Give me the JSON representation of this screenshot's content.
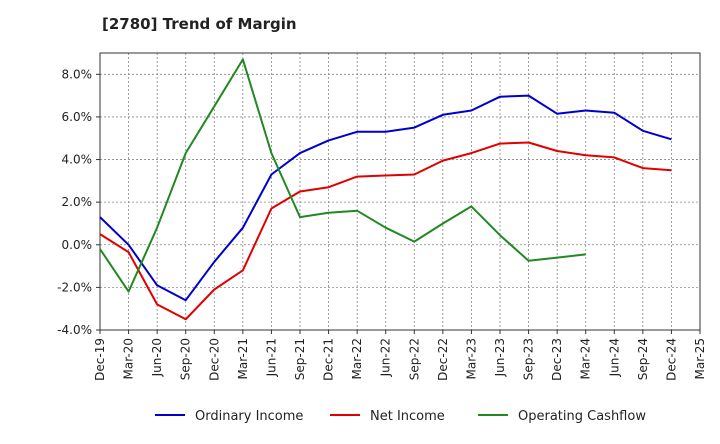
{
  "chart_data": {
    "type": "line",
    "title": "[2780]  Trend of Margin",
    "xlabel": "",
    "ylabel": "",
    "x": [
      "Dec-19",
      "Mar-20",
      "Jun-20",
      "Sep-20",
      "Dec-20",
      "Mar-21",
      "Jun-21",
      "Sep-21",
      "Dec-21",
      "Mar-22",
      "Jun-22",
      "Sep-22",
      "Dec-22",
      "Mar-23",
      "Jun-23",
      "Sep-23",
      "Dec-23",
      "Mar-24",
      "Jun-24",
      "Sep-24",
      "Dec-24",
      "Mar-25"
    ],
    "ylim": [
      -4.0,
      9.0
    ],
    "yticks": [
      -4.0,
      -2.0,
      0.0,
      2.0,
      4.0,
      6.0,
      8.0
    ],
    "ytick_labels": [
      "-4.0%",
      "-2.0%",
      "0.0%",
      "2.0%",
      "4.0%",
      "6.0%",
      "8.0%"
    ],
    "grid": true,
    "legend_position": "bottom",
    "series": [
      {
        "name": "Ordinary Income",
        "color": "#0000cc",
        "values": [
          1.3,
          0.0,
          -1.9,
          -2.6,
          -0.8,
          0.8,
          3.3,
          4.3,
          4.9,
          5.3,
          5.3,
          5.5,
          6.1,
          6.3,
          6.95,
          7.0,
          6.15,
          6.3,
          6.2,
          5.35,
          4.95,
          null
        ]
      },
      {
        "name": "Net Income",
        "color": "#e00000",
        "values": [
          0.5,
          -0.35,
          -2.8,
          -3.5,
          -2.1,
          -1.2,
          1.7,
          2.5,
          2.7,
          3.2,
          3.25,
          3.3,
          3.95,
          4.3,
          4.75,
          4.8,
          4.4,
          4.2,
          4.1,
          3.6,
          3.5,
          null
        ]
      },
      {
        "name": "Operating Cashflow",
        "color": "#228822",
        "values": [
          -0.2,
          -2.2,
          0.8,
          4.3,
          6.5,
          8.7,
          4.3,
          1.3,
          1.5,
          1.6,
          0.8,
          0.15,
          1.0,
          1.8,
          0.45,
          -0.75,
          -0.6,
          -0.45,
          null,
          null,
          null,
          null
        ]
      }
    ]
  }
}
